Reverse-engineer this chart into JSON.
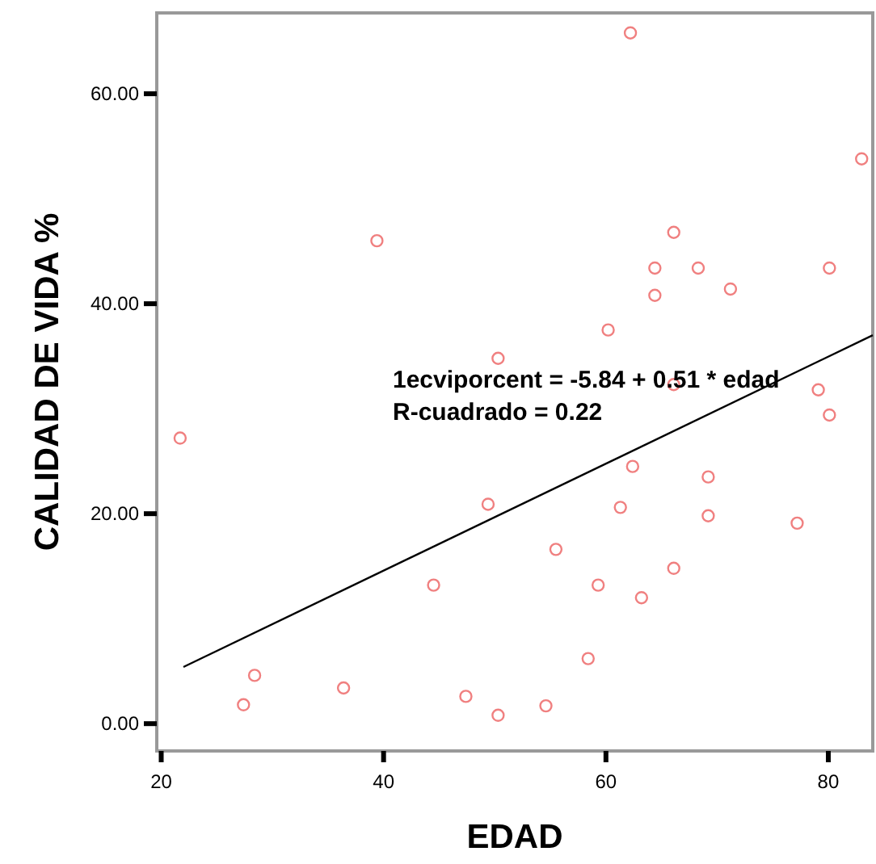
{
  "chart_data": {
    "type": "scatter",
    "xlabel": "EDAD",
    "ylabel": "CALIDAD DE VIDA %",
    "xlim": [
      19.6,
      84
    ],
    "ylim": [
      -2.6,
      67.7
    ],
    "xticks": [
      20,
      40,
      60,
      80
    ],
    "yticks": [
      {
        "value": 0,
        "label": "0.00"
      },
      {
        "value": 20,
        "label": "20.00"
      },
      {
        "value": 40,
        "label": "40.00"
      },
      {
        "value": 60,
        "label": "60.00"
      }
    ],
    "grid": false,
    "annotations": [
      "1ecviporcent = -5.84 + 0.51 * edad",
      "R-cuadrado = 0.22"
    ],
    "series": [
      {
        "color": "#f08080",
        "marker": "circle",
        "x": [
          21.7,
          27.4,
          28.4,
          36.4,
          39.4,
          44.5,
          47.4,
          49.4,
          50.3,
          50.3,
          54.6,
          55.5,
          58.4,
          59.3,
          60.2,
          61.3,
          62.2,
          62.4,
          63.2,
          64.4,
          64.4,
          66.1,
          66.1,
          69.2,
          69.2,
          68.3,
          71.2,
          66.1,
          77.2,
          79.1,
          80.1,
          80.1,
          83.0
        ],
        "values": [
          27.2,
          1.8,
          4.6,
          3.4,
          46.0,
          13.2,
          2.6,
          20.9,
          34.8,
          0.8,
          1.7,
          16.6,
          6.2,
          13.2,
          37.5,
          20.6,
          65.8,
          24.5,
          12.0,
          43.4,
          40.8,
          32.3,
          46.8,
          23.5,
          19.8,
          43.4,
          41.4,
          14.8,
          19.1,
          31.8,
          43.4,
          29.4,
          53.8
        ]
      },
      {
        "type": "line",
        "color": "#000000",
        "marker": "none",
        "line_style": "solid",
        "x": [
          22,
          84
        ],
        "values": [
          5.4,
          37
        ]
      }
    ]
  }
}
